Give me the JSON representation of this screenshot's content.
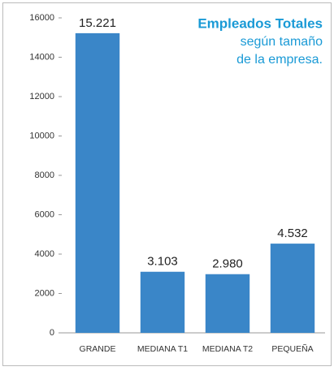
{
  "chart_data": {
    "type": "bar",
    "title": "Empleados Totales",
    "subtitle": [
      "según tamaño",
      "de la empresa."
    ],
    "categories": [
      "GRANDE",
      "MEDIANA T1",
      "MEDIANA T2",
      "PEQUEÑA"
    ],
    "values": [
      15221,
      3103,
      2980,
      4532
    ],
    "value_labels": [
      "15.221",
      "3.103",
      "2.980",
      "4.532"
    ],
    "color": "#3a86c8",
    "ylim": [
      0,
      16000
    ],
    "yticks": [
      0,
      2000,
      4000,
      6000,
      8000,
      10000,
      12000,
      14000,
      16000
    ],
    "grid": false
  }
}
